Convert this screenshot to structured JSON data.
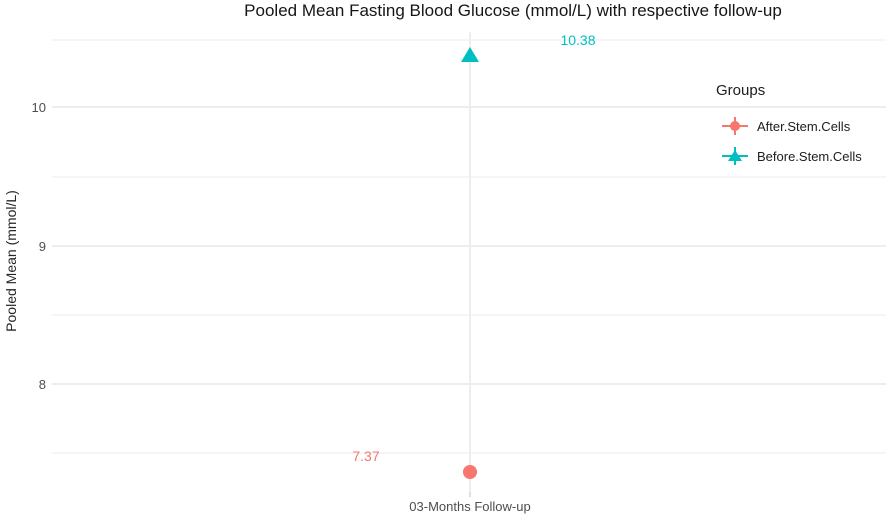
{
  "chart_data": {
    "type": "scatter",
    "title": "Pooled Mean Fasting Blood Glucose (mmol/L) with respective follow-up",
    "xlabel": "",
    "ylabel": "Pooled Mean (mmol/L)",
    "categories": [
      "03-Months Follow-up"
    ],
    "y_ticks": [
      "10",
      "9",
      "8"
    ],
    "ylim": [
      7.2,
      10.55
    ],
    "grid": "horizontal major + minor light gray lines on white panel, one vertical major gridline at the single category",
    "legend": {
      "title": "Groups",
      "position": "right-inside-top",
      "entries": [
        {
          "label": "After.Stem.Cells",
          "marker": "circle-pointrange",
          "color": "#F8766D"
        },
        {
          "label": "Before.Stem.Cells",
          "marker": "triangle-pointrange",
          "color": "#00BFC4"
        }
      ]
    },
    "series": [
      {
        "name": "After.Stem.Cells",
        "category": "03-Months Follow-up",
        "value": 7.37,
        "label": "7.37",
        "marker": "circle",
        "color": "#F8766D"
      },
      {
        "name": "Before.Stem.Cells",
        "category": "03-Months Follow-up",
        "value": 10.38,
        "label": "10.38",
        "marker": "triangle",
        "color": "#00BFC4"
      }
    ]
  },
  "colors": {
    "accent_red": "#F8766D",
    "accent_teal": "#00BFC4",
    "grid_major": "#ededed",
    "grid_minor": "#f5f5f5",
    "axis_text": "#4e4e4e",
    "title_text": "#161616"
  }
}
